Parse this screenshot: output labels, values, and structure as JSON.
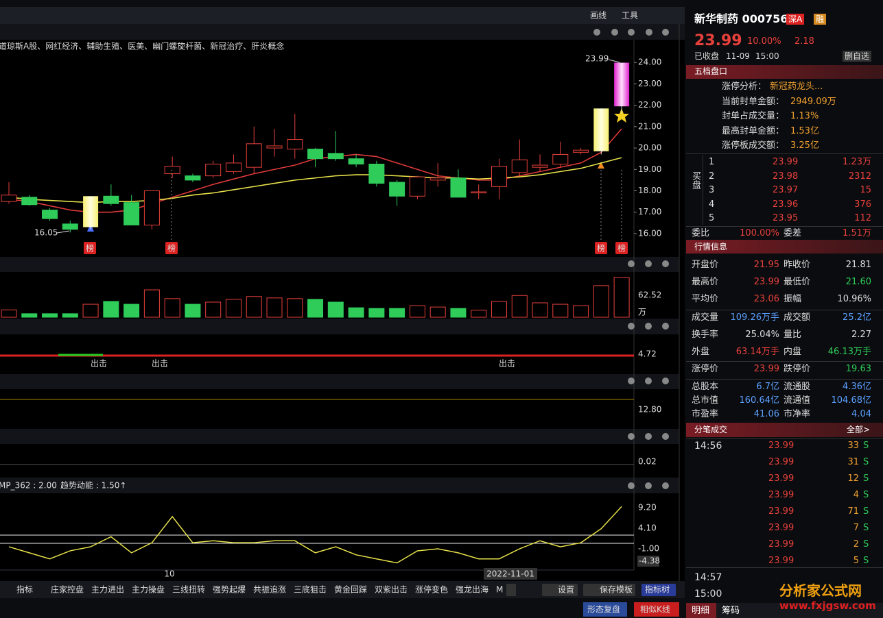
{
  "toolbar": {
    "draw": "画线",
    "tools": "工具"
  },
  "concepts": "道琼斯A股、网红经济、辅助生殖、医美、幽门螺旋杆菌、新冠治疗、肝炎概念",
  "price_chart": {
    "type": "candlestick",
    "ylim": [
      15.1,
      25.0
    ],
    "yticks": [
      {
        "value": 16,
        "label": "16.00"
      },
      {
        "value": 17,
        "label": "17.00"
      },
      {
        "value": 18,
        "label": "18.00"
      },
      {
        "value": 19,
        "label": "19.00"
      },
      {
        "value": 20,
        "label": "20.00"
      },
      {
        "value": 21,
        "label": "21.00"
      },
      {
        "value": 22,
        "label": "22.00"
      },
      {
        "value": 23,
        "label": "23.00"
      },
      {
        "value": 24,
        "label": "24.00"
      }
    ],
    "open": [
      17.5,
      17.7,
      17.1,
      16.45,
      16.3,
      17.75,
      17.45,
      16.4,
      18.8,
      18.7,
      18.7,
      18.9,
      19.1,
      20.0,
      19.95,
      19.95,
      19.75,
      19.5,
      19.25,
      18.4,
      17.75,
      18.5,
      18.6,
      17.9,
      18.2,
      18.85,
      19.1,
      19.25,
      19.8,
      19.85,
      21.95
    ],
    "high": [
      18.4,
      17.8,
      17.2,
      16.6,
      17.75,
      18.3,
      17.8,
      18.0,
      19.6,
      18.8,
      19.4,
      19.7,
      21.0,
      20.9,
      21.6,
      20.0,
      20.8,
      19.7,
      19.4,
      18.5,
      18.7,
      19.3,
      19.0,
      18.3,
      19.5,
      20.4,
      19.7,
      20.3,
      20.0,
      21.85,
      23.99
    ],
    "low": [
      17.4,
      17.3,
      16.6,
      16.05,
      16.2,
      17.3,
      16.4,
      16.2,
      18.6,
      18.4,
      18.6,
      18.8,
      18.8,
      19.6,
      19.5,
      19.1,
      19.4,
      19.1,
      18.2,
      17.3,
      17.6,
      18.2,
      17.7,
      17.6,
      17.6,
      18.7,
      18.9,
      19.1,
      19.7,
      19.7,
      21.6
    ],
    "close": [
      17.8,
      17.35,
      16.7,
      16.2,
      17.75,
      17.4,
      16.4,
      18.0,
      19.15,
      18.5,
      19.25,
      19.3,
      20.2,
      20.1,
      20.4,
      19.5,
      19.5,
      19.25,
      18.35,
      17.75,
      18.65,
      18.6,
      17.7,
      17.95,
      19.15,
      19.45,
      19.2,
      19.7,
      19.9,
      21.85,
      23.99
    ],
    "ma_lines": [
      {
        "color": "#e03a3a",
        "values": [
          17.6,
          17.5,
          17.3,
          17.1,
          17.0,
          17.0,
          17.1,
          17.4,
          17.7,
          18.0,
          18.3,
          18.55,
          18.8,
          19.0,
          19.2,
          19.5,
          19.6,
          19.7,
          19.6,
          19.3,
          19.0,
          18.7,
          18.6,
          18.5,
          18.5,
          18.7,
          18.9,
          19.1,
          19.3,
          19.8,
          20.9
        ]
      },
      {
        "color": "#e8e24a",
        "values": [
          17.7,
          17.6,
          17.55,
          17.5,
          17.45,
          17.5,
          17.5,
          17.55,
          17.65,
          17.8,
          17.9,
          18.05,
          18.2,
          18.35,
          18.5,
          18.6,
          18.7,
          18.75,
          18.75,
          18.7,
          18.65,
          18.6,
          18.6,
          18.55,
          18.6,
          18.65,
          18.75,
          18.9,
          19.05,
          19.3,
          19.55
        ]
      }
    ],
    "high_label": "23.99",
    "low_label": "16.05",
    "badges": [
      "榜",
      "榜",
      "榜",
      "榜"
    ]
  },
  "volume": {
    "type": "bar",
    "ylim": [
      0,
      123
    ],
    "yticks": [
      62.52
    ],
    "unit": "万",
    "values": [
      21,
      10,
      10,
      10,
      37,
      45,
      37,
      78,
      53,
      37,
      43,
      51,
      59,
      55,
      53,
      51,
      43,
      27,
      25,
      25,
      33,
      29,
      25,
      20,
      45,
      62,
      41,
      37,
      33,
      90,
      113
    ]
  },
  "panel_labels": [
    "4.72",
    "12.80",
    "0.02"
  ],
  "signals": [
    "出击",
    "出击",
    "出击"
  ],
  "indicator": {
    "mp": "MP_362 : 2.00",
    "trend": "趋势动能 : 1.50↑"
  },
  "trend_panel": {
    "type": "line",
    "ylim": [
      -6.27,
      12.43
    ],
    "yticks": [
      {
        "value": 9.2,
        "label": "9.20"
      },
      {
        "value": 4.1,
        "label": "4.10"
      },
      {
        "value": -1,
        "label": "-1.00"
      }
    ],
    "last_label": "-4.38",
    "color": "#e8e24a",
    "values": [
      -0.5,
      -2,
      -3.5,
      -1.5,
      -0.5,
      2,
      -2,
      0.5,
      7,
      0.5,
      1,
      0.5,
      0.5,
      1,
      1,
      -2,
      -0.5,
      -2.5,
      -3.5,
      -4.5,
      -1.5,
      -1,
      -2,
      -3.5,
      -3.5,
      -1,
      1,
      -0.5,
      0.5,
      4,
      9.5
    ]
  },
  "x_labels": [
    "10",
    "2022-11-01"
  ],
  "bottom_bar": {
    "label": "指标",
    "items": [
      "庄家控盘",
      "主力进出",
      "主力操盘",
      "三线扭转",
      "强势起爆",
      "共振追涨",
      "三底狙击",
      "黄金回踩",
      "双紫出击",
      "涨停变色",
      "强龙出海",
      "M"
    ],
    "settings": "设置",
    "save": "保存模板",
    "tree": "指标树",
    "replay": "形态复盘",
    "similar": "相似K线"
  },
  "quote": {
    "name": "新华制药 000756",
    "market": "深A",
    "margin": "融",
    "price": "23.99",
    "change_pct": "10.00%",
    "change": "2.18",
    "status": "已收盘",
    "date": "11-09",
    "time": "15:00",
    "button": "删自选"
  },
  "order_book": {
    "title": "五档盘口",
    "analysis": [
      [
        "涨停分析：",
        "新冠药龙头..."
      ],
      [
        "当前封单金额：",
        "2949.09万"
      ],
      [
        "封单占成交量：",
        "1.13%"
      ],
      [
        "最高封单金额：",
        "1.53亿"
      ],
      [
        "涨停板成交额：",
        "3.25亿"
      ]
    ],
    "side": "买盘",
    "bids": [
      [
        "1",
        "23.99",
        "1.23万"
      ],
      [
        "2",
        "23.98",
        "2312"
      ],
      [
        "3",
        "23.97",
        "15"
      ],
      [
        "4",
        "23.96",
        "376"
      ],
      [
        "5",
        "23.95",
        "112"
      ]
    ],
    "ratio": [
      "委比",
      "100.00%",
      "委差",
      "1.51万"
    ]
  },
  "market_info": {
    "title": "行情信息",
    "rows": [
      [
        "开盘价",
        "21.95",
        "昨收价",
        "21.81"
      ],
      [
        "最高价",
        "23.99",
        "最低价",
        "21.60"
      ],
      [
        "平均价",
        "23.06",
        "振幅",
        "10.96%"
      ],
      [
        "成交量",
        "109.26万手",
        "成交额",
        "25.2亿"
      ],
      [
        "换手率",
        "25.04%",
        "量比",
        "2.27"
      ],
      [
        "外盘",
        "63.14万手",
        "内盘",
        "46.13万手"
      ],
      [
        "涨停价",
        "23.99",
        "跌停价",
        "19.63"
      ],
      [
        "总股本",
        "6.7亿",
        "流通股",
        "4.36亿"
      ],
      [
        "总市值",
        "160.64亿",
        "流通值",
        "104.68亿"
      ],
      [
        "市盈率",
        "41.06",
        "市净率",
        "4.04"
      ]
    ]
  },
  "trades": {
    "title": "分笔成交",
    "all": "全部>",
    "times": [
      "14:56",
      "14:57",
      "15:00"
    ],
    "rows": [
      [
        "23.99",
        "33",
        "S"
      ],
      [
        "23.99",
        "31",
        "S"
      ],
      [
        "23.99",
        "12",
        "S"
      ],
      [
        "23.99",
        "4",
        "S"
      ],
      [
        "23.99",
        "71",
        "S"
      ],
      [
        "23.99",
        "7",
        "S"
      ],
      [
        "23.99",
        "2",
        "S"
      ],
      [
        "23.99",
        "5",
        "S"
      ]
    ]
  },
  "tabs": [
    "明细",
    "筹码"
  ],
  "logo": {
    "name": "分析家公式网",
    "url": "www.fxjgsw.com"
  }
}
